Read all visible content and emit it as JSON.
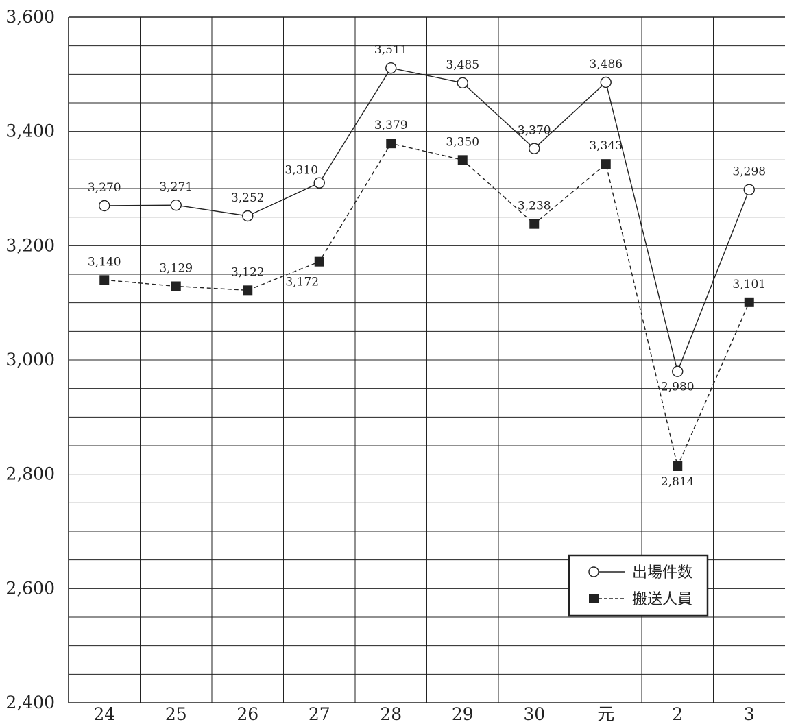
{
  "chart_data": {
    "type": "line",
    "categories": [
      "24",
      "25",
      "26",
      "27",
      "28",
      "29",
      "30",
      "元",
      "2",
      "3"
    ],
    "ylim": [
      2400,
      3600
    ],
    "yticks": [
      {
        "value": 2400,
        "label": "2,400"
      },
      {
        "value": 2600,
        "label": "2,600"
      },
      {
        "value": 2800,
        "label": "2,800"
      },
      {
        "value": 3000,
        "label": "3,000"
      },
      {
        "value": 3200,
        "label": "3,200"
      },
      {
        "value": 3400,
        "label": "3,400"
      },
      {
        "value": 3600,
        "label": "3,600"
      }
    ],
    "minor_gridlines_per_major": 4,
    "grid": true,
    "legend_position": "bottom-right",
    "series": [
      {
        "name": "出場件数",
        "marker": "open-circle",
        "line_style": "solid",
        "values": [
          3270,
          3271,
          3252,
          3310,
          3511,
          3485,
          3370,
          3486,
          2980,
          3298
        ],
        "labels": [
          "3,270",
          "3,271",
          "3,252",
          "3,310",
          "3,511",
          "3,485",
          "3,370",
          "3,486",
          "2,980",
          "3,298"
        ],
        "label_positions": [
          "above",
          "above",
          "above",
          "above-left",
          "above",
          "above",
          "above",
          "above",
          "below",
          "above"
        ]
      },
      {
        "name": "搬送人員",
        "marker": "filled-square",
        "line_style": "dashed",
        "values": [
          3140,
          3129,
          3122,
          3172,
          3379,
          3350,
          3238,
          3343,
          2814,
          3101
        ],
        "labels": [
          "3,140",
          "3,129",
          "3,122",
          "3,172",
          "3,379",
          "3,350",
          "3,238",
          "3,343",
          "2,814",
          "3,101"
        ],
        "label_positions": [
          "above",
          "above",
          "above",
          "below-left",
          "above",
          "above",
          "above",
          "above",
          "below",
          "above"
        ]
      }
    ]
  }
}
